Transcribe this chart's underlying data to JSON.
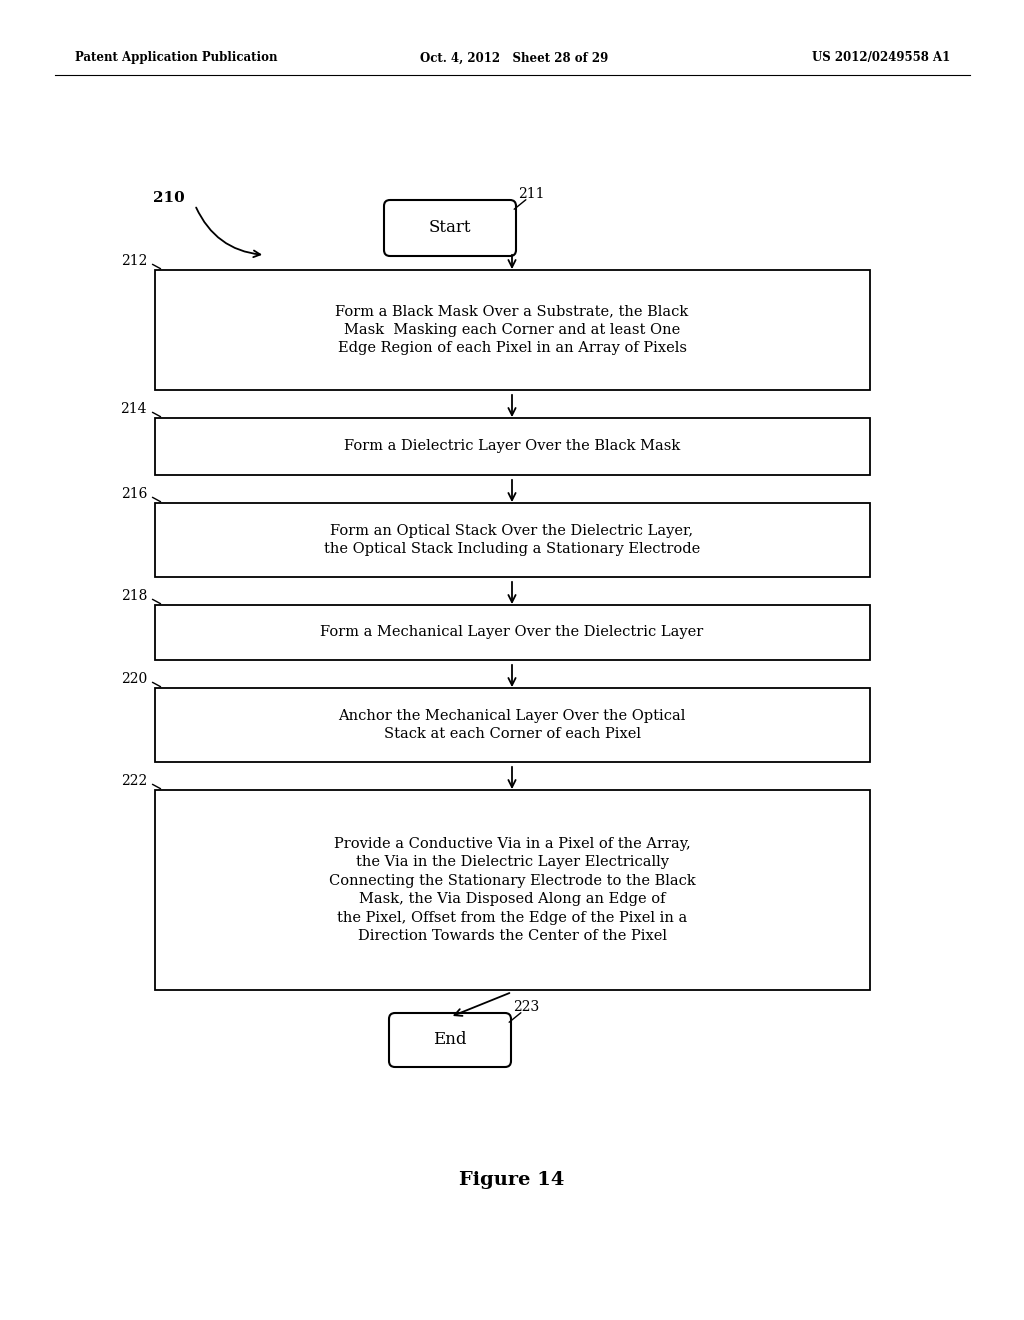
{
  "bg_color": "#ffffff",
  "header_left": "Patent Application Publication",
  "header_mid": "Oct. 4, 2012   Sheet 28 of 29",
  "header_right": "US 2012/0249558 A1",
  "figure_label": "Figure 14",
  "diagram_label": "210",
  "start_label": "211",
  "start_text": "Start",
  "end_label": "223",
  "end_text": "End",
  "boxes": [
    {
      "label": "212",
      "text": "Form a Black Mask Over a Substrate, the Black\nMask  Masking each Corner and at least One\nEdge Region of each Pixel in an Array of Pixels",
      "nlines": 3
    },
    {
      "label": "214",
      "text": "Form a Dielectric Layer Over the Black Mask",
      "nlines": 1
    },
    {
      "label": "216",
      "text": "Form an Optical Stack Over the Dielectric Layer,\nthe Optical Stack Including a Stationary Electrode",
      "nlines": 2
    },
    {
      "label": "218",
      "text": "Form a Mechanical Layer Over the Dielectric Layer",
      "nlines": 1
    },
    {
      "label": "220",
      "text": "Anchor the Mechanical Layer Over the Optical\nStack at each Corner of each Pixel",
      "nlines": 2
    },
    {
      "label": "222",
      "text": "Provide a Conductive Via in a Pixel of the Array,\nthe Via in the Dielectric Layer Electrically\nConnecting the Stationary Electrode to the Black\nMask, the Via Disposed Along an Edge of\nthe Pixel, Offset from the Edge of the Pixel in a\nDirection Towards the Center of the Pixel",
      "nlines": 6
    }
  ]
}
